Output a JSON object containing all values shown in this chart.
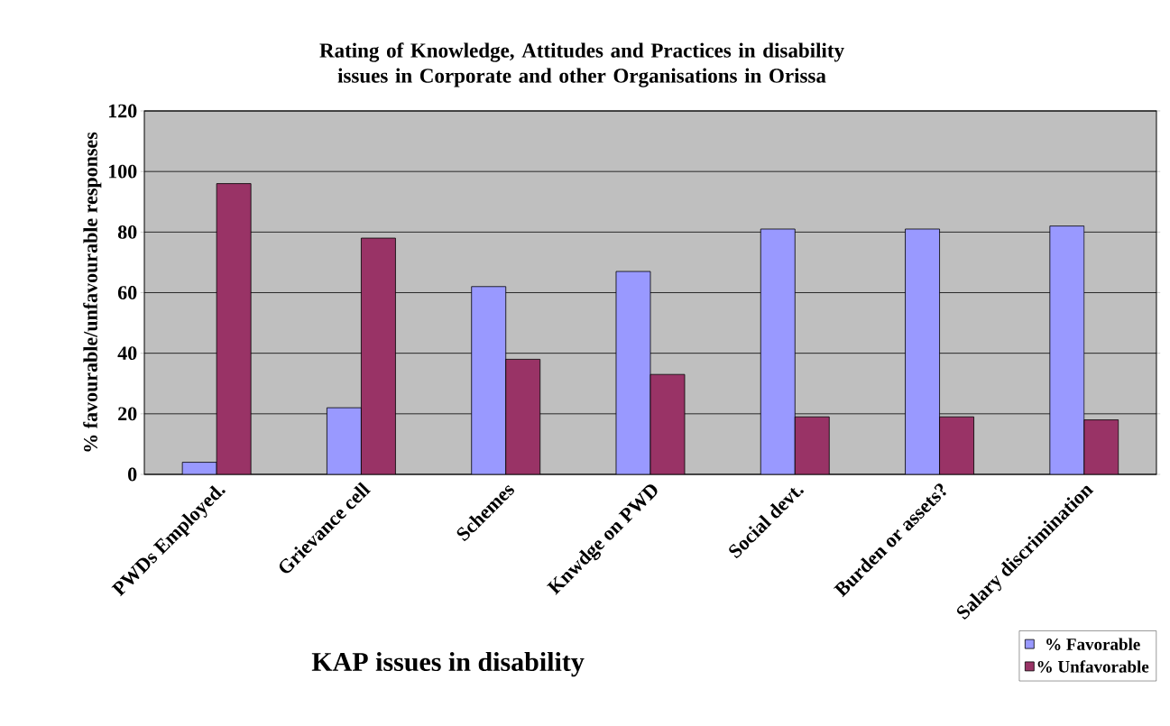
{
  "chart_data": {
    "type": "bar",
    "title": "Rating of Knowledge, Attitudes and Practices in disability issues in Corporate and other Organisations in Orissa",
    "xlabel": "KAP issues in disability",
    "ylabel": "% favourable/unfavourable responses",
    "categories": [
      "PWDs Employed.",
      "Grievance cell",
      "Schemes",
      "Knwdge on PWD",
      "Social devt.",
      "Burden or assets?",
      "Salary discrimination"
    ],
    "series": [
      {
        "name": "% Favorable",
        "color": "#9999ff",
        "values": [
          4,
          22,
          62,
          67,
          81,
          81,
          82
        ]
      },
      {
        "name": "% Unfavorable",
        "color": "#993366",
        "values": [
          96,
          78,
          38,
          33,
          19,
          19,
          18
        ]
      }
    ],
    "ylim": [
      0,
      120
    ],
    "yticks": [
      0,
      20,
      40,
      60,
      80,
      100,
      120
    ],
    "grid": "y",
    "legend": "bottom right"
  }
}
